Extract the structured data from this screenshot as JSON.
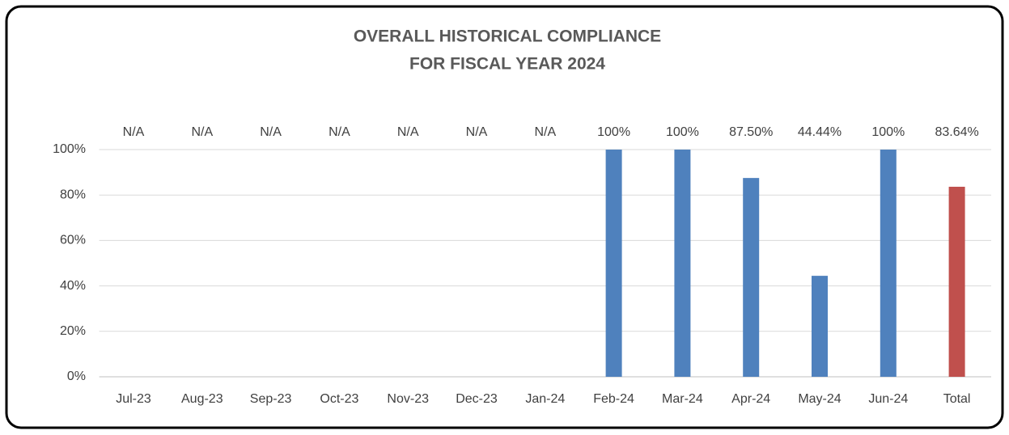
{
  "chart_data": {
    "type": "bar",
    "title": [
      "OVERALL HISTORICAL COMPLIANCE",
      "FOR FISCAL YEAR 2024"
    ],
    "categories": [
      "Jul-23",
      "Aug-23",
      "Sep-23",
      "Oct-23",
      "Nov-23",
      "Dec-23",
      "Jan-24",
      "Feb-24",
      "Mar-24",
      "Apr-24",
      "May-24",
      "Jun-24",
      "Total"
    ],
    "values": [
      null,
      null,
      null,
      null,
      null,
      null,
      null,
      100,
      100,
      87.5,
      44.44,
      100,
      83.64
    ],
    "value_labels": [
      "N/A",
      "N/A",
      "N/A",
      "N/A",
      "N/A",
      "N/A",
      "N/A",
      "100%",
      "100%",
      "87.50%",
      "44.44%",
      "100%",
      "83.64%"
    ],
    "colors": [
      "#4f81bd",
      "#4f81bd",
      "#4f81bd",
      "#4f81bd",
      "#4f81bd",
      "#4f81bd",
      "#4f81bd",
      "#4f81bd",
      "#4f81bd",
      "#4f81bd",
      "#4f81bd",
      "#4f81bd",
      "#c0504d"
    ],
    "ylim": [
      0,
      100
    ],
    "yticks": [
      {
        "value": 0,
        "label": "0%"
      },
      {
        "value": 20,
        "label": "20%"
      },
      {
        "value": 40,
        "label": "40%"
      },
      {
        "value": 60,
        "label": "60%"
      },
      {
        "value": 80,
        "label": "80%"
      },
      {
        "value": 100,
        "label": "100%"
      }
    ],
    "grid": true
  }
}
